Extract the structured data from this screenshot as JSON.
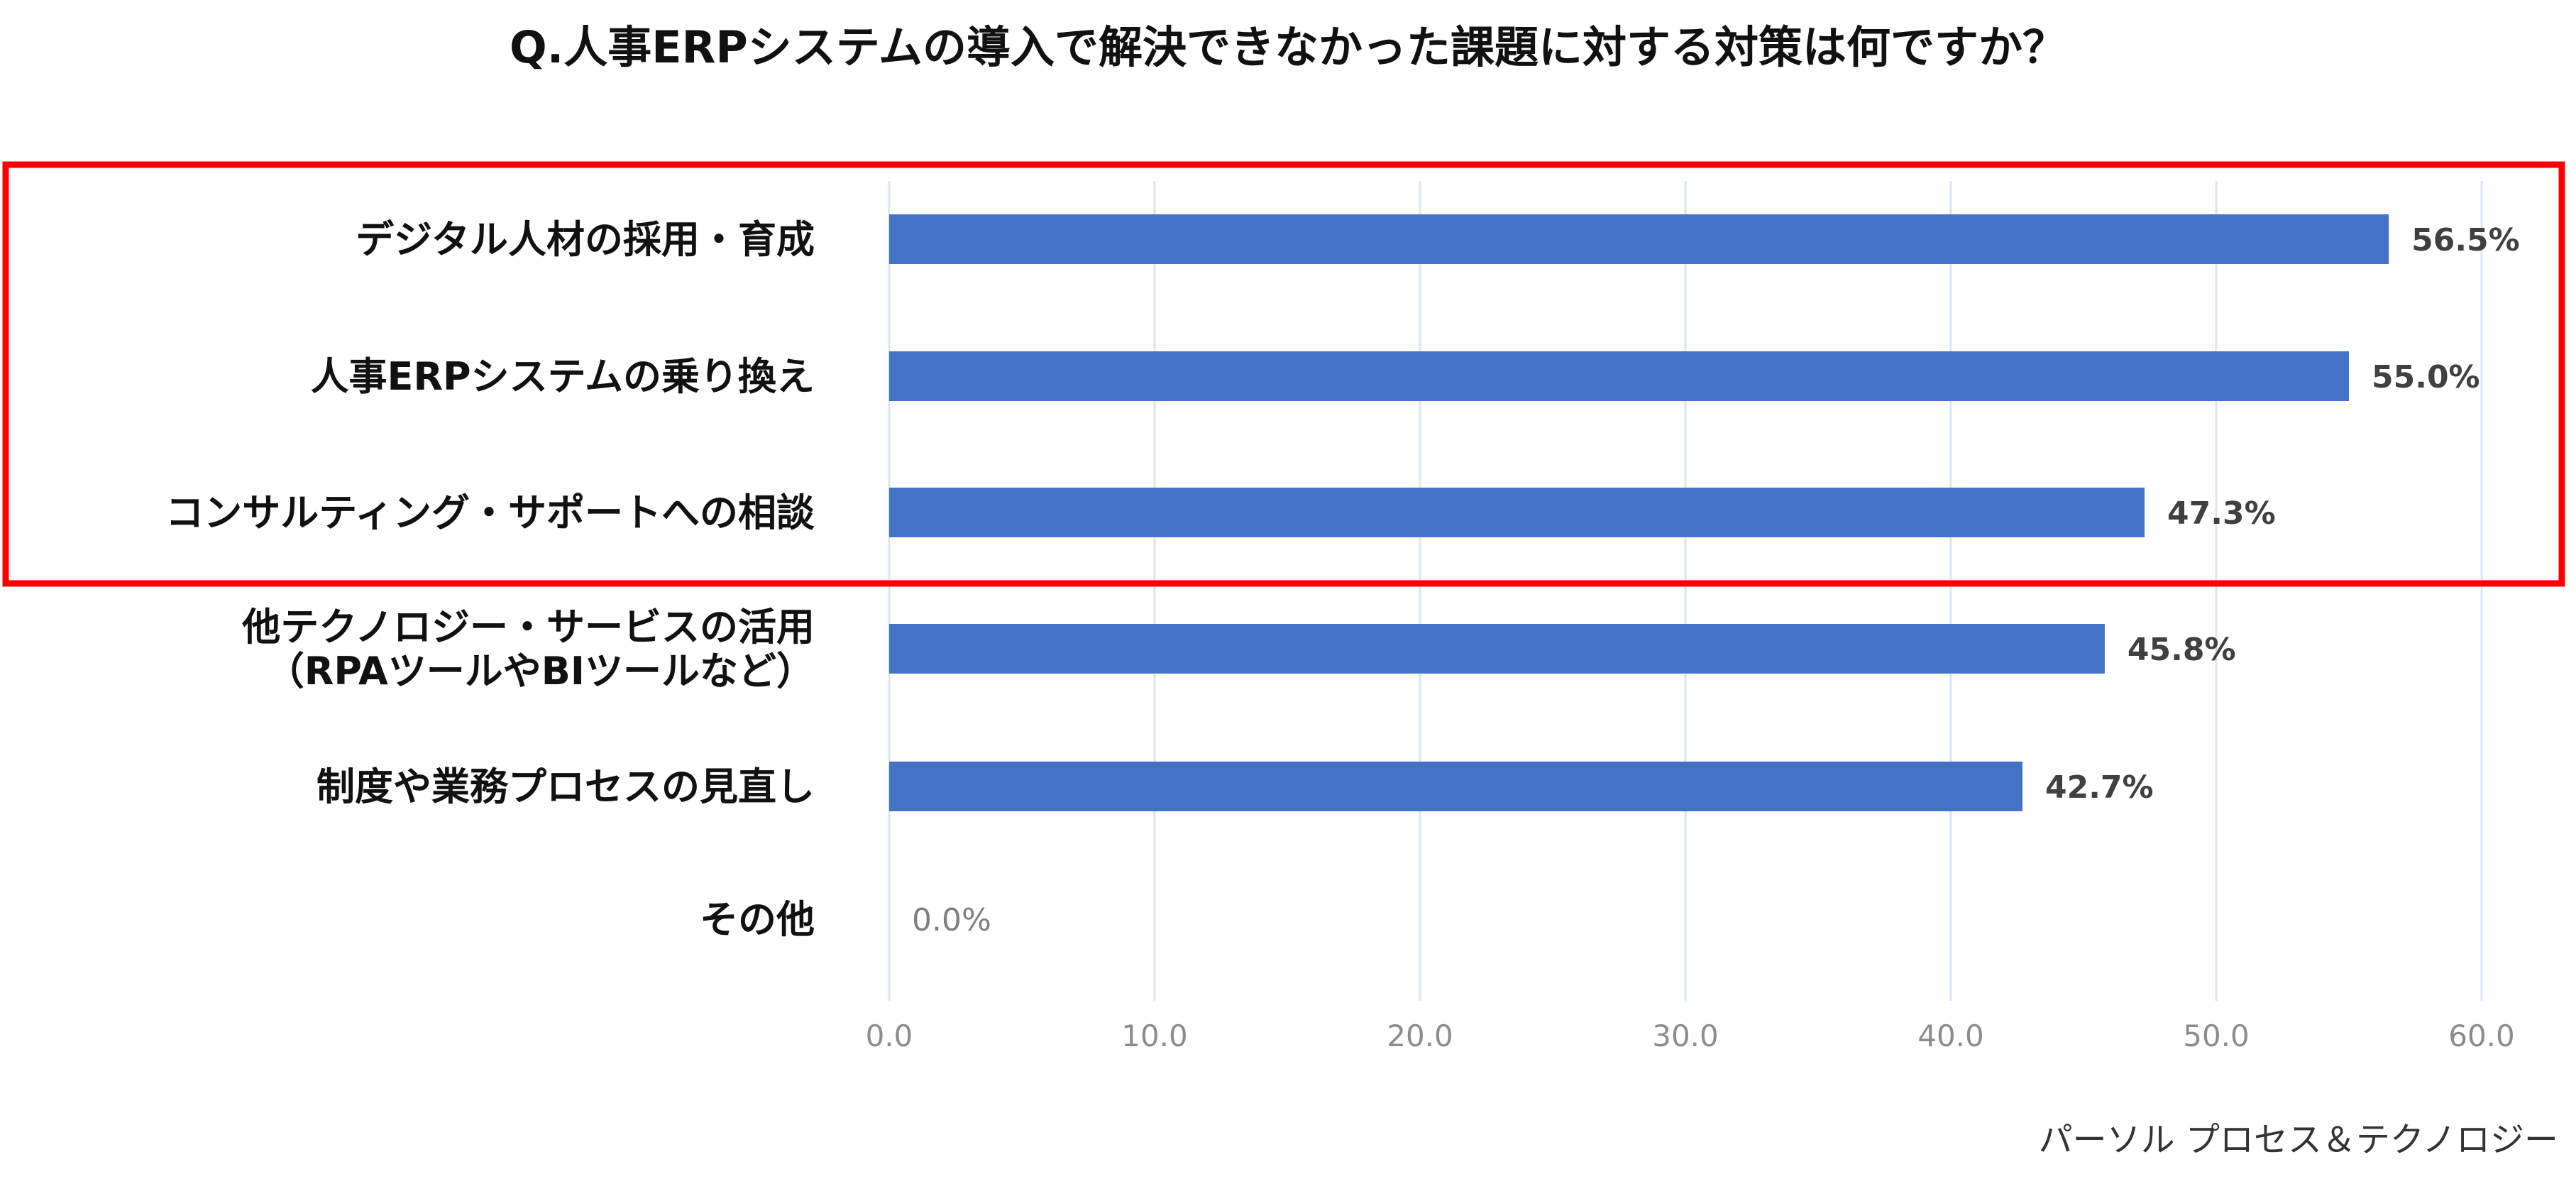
{
  "title": "Q.人事ERPシステムの導入で解決できなかった課題に対する対策は何ですか？",
  "source": "パーソル プロセス＆テクノロジー",
  "highlight_color": "#ff0000",
  "chart_data": {
    "type": "bar",
    "orientation": "horizontal",
    "categories": [
      [
        "デジタル人材の採用・育成"
      ],
      [
        "人事ERPシステムの乗り換え"
      ],
      [
        "コンサルティング・サポートへの相談"
      ],
      [
        "他テクノロジー・サービスの活用",
        "（RPAツールやBIツールなど）"
      ],
      [
        "制度や業務プロセスの見直し"
      ],
      [
        "その他"
      ]
    ],
    "values": [
      56.5,
      55.0,
      47.3,
      45.8,
      42.7,
      0.0
    ],
    "value_labels": [
      "56.5%",
      "55.0%",
      "47.3%",
      "45.8%",
      "42.7%",
      "0.0%"
    ],
    "xlim": [
      0,
      60
    ],
    "xticks": [
      "0.0",
      "10.0",
      "20.0",
      "30.0",
      "40.0",
      "50.0",
      "60.0"
    ],
    "bar_color": "#4472c4",
    "grid": true,
    "highlighted_categories": [
      0,
      1,
      2
    ]
  }
}
